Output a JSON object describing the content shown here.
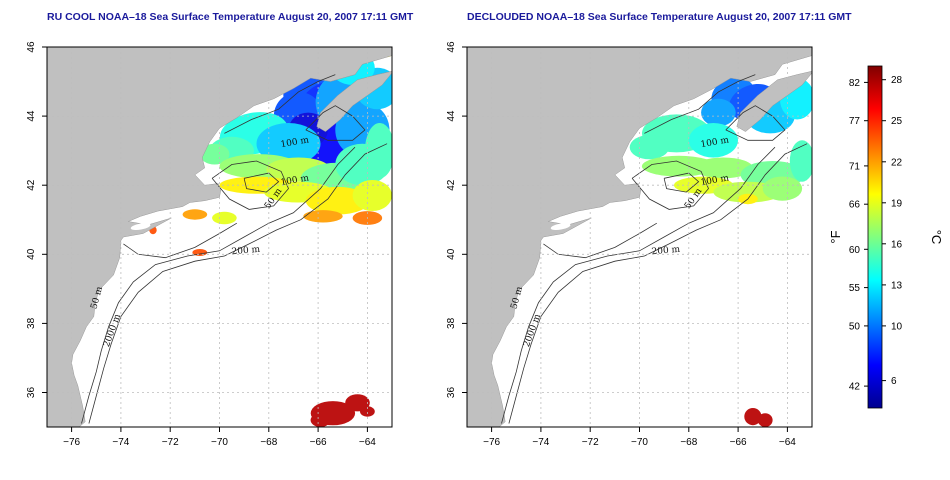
{
  "panels": [
    {
      "id": "left",
      "title": "RU COOL NOAA–18 Sea Surface Temperature August 20, 2007 17:11 GMT"
    },
    {
      "id": "right",
      "title": "DECLOUDED NOAA–18 Sea Surface Temperature August 20, 2007 17:11 GMT"
    }
  ],
  "axes": {
    "lon_ticks": [
      -76,
      -74,
      -72,
      -70,
      -68,
      -66,
      -64
    ],
    "lat_ticks": [
      36,
      38,
      40,
      42,
      44,
      46
    ],
    "lon_labels": [
      "−76",
      "−74",
      "−72",
      "−70",
      "−68",
      "−66",
      "−64"
    ],
    "lat_labels": [
      "36",
      "38",
      "40",
      "42",
      "44",
      "46"
    ],
    "lon_range": [
      -77,
      -63
    ],
    "lat_range": [
      35,
      46
    ]
  },
  "contours": {
    "labels": [
      "100 m",
      "100 m",
      "50 m",
      "200 m",
      "50 m",
      "2000 m"
    ]
  },
  "colorbar": {
    "fahrenheit_label": "°F",
    "celsius_label": "°C",
    "fahrenheit_ticks": [
      {
        "label": "82",
        "temp_c": 27.8
      },
      {
        "label": "77",
        "temp_c": 25.0
      },
      {
        "label": "71",
        "temp_c": 21.7
      },
      {
        "label": "66",
        "temp_c": 18.9
      },
      {
        "label": "60",
        "temp_c": 15.6
      },
      {
        "label": "55",
        "temp_c": 12.8
      },
      {
        "label": "50",
        "temp_c": 10.0
      },
      {
        "label": "42",
        "temp_c": 5.6
      }
    ],
    "celsius_ticks": [
      {
        "label": "28",
        "temp_c": 28
      },
      {
        "label": "25",
        "temp_c": 25
      },
      {
        "label": "22",
        "temp_c": 22
      },
      {
        "label": "19",
        "temp_c": 19
      },
      {
        "label": "16",
        "temp_c": 16
      },
      {
        "label": "13",
        "temp_c": 13
      },
      {
        "label": "10",
        "temp_c": 10
      },
      {
        "label": "6",
        "temp_c": 6
      }
    ],
    "range_c": [
      4,
      29
    ],
    "colors": [
      "#00008f",
      "#0000ff",
      "#0080ff",
      "#00ffff",
      "#80ff80",
      "#ffff00",
      "#ff8000",
      "#ff0000",
      "#800000"
    ]
  },
  "style": {
    "land_color": "#c0c0c0",
    "grid_color": "#bdbdbd",
    "contour_color": "#333333",
    "title_color": "#1a1a9c"
  }
}
